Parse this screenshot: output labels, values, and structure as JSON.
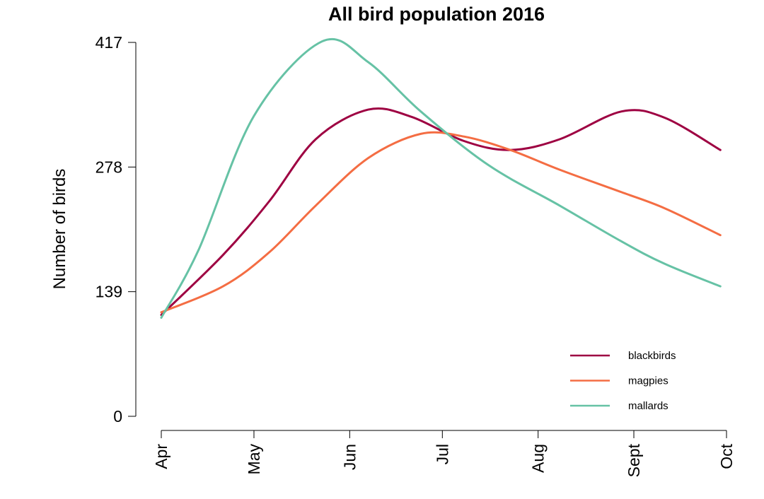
{
  "chart_data": {
    "type": "line",
    "title": "All bird population 2016",
    "ylabel": "Number of birds",
    "xlabel": "",
    "ylim": [
      0,
      417
    ],
    "yticks": [
      0,
      139,
      278,
      417
    ],
    "xlim": [
      "2016-04-01",
      "2016-10-01"
    ],
    "xticks": [
      {
        "label": "Apr",
        "date": "2016-04-01"
      },
      {
        "label": "May",
        "date": "2016-05-01"
      },
      {
        "label": "Jun",
        "date": "2016-06-01"
      },
      {
        "label": "Jul",
        "date": "2016-07-01"
      },
      {
        "label": "Aug",
        "date": "2016-08-01"
      },
      {
        "label": "Sept",
        "date": "2016-09-01"
      },
      {
        "label": "Oct",
        "date": "2016-10-01"
      }
    ],
    "legend_position": "bottom-right",
    "grid": false,
    "series": [
      {
        "name": "blackbirds",
        "color": "#9E0142",
        "points": [
          {
            "x": "2016-04-01",
            "y": 113
          },
          {
            "x": "2016-04-21",
            "y": 180
          },
          {
            "x": "2016-05-06",
            "y": 240
          },
          {
            "x": "2016-05-21",
            "y": 309
          },
          {
            "x": "2016-06-07",
            "y": 342
          },
          {
            "x": "2016-06-21",
            "y": 334
          },
          {
            "x": "2016-07-08",
            "y": 307
          },
          {
            "x": "2016-07-23",
            "y": 297
          },
          {
            "x": "2016-08-08",
            "y": 309
          },
          {
            "x": "2016-08-28",
            "y": 340
          },
          {
            "x": "2016-09-11",
            "y": 333
          },
          {
            "x": "2016-09-29",
            "y": 297
          }
        ]
      },
      {
        "name": "magpies",
        "color": "#F46D43",
        "points": [
          {
            "x": "2016-04-01",
            "y": 116
          },
          {
            "x": "2016-04-21",
            "y": 145
          },
          {
            "x": "2016-05-06",
            "y": 183
          },
          {
            "x": "2016-05-21",
            "y": 235
          },
          {
            "x": "2016-06-07",
            "y": 288
          },
          {
            "x": "2016-06-24",
            "y": 315
          },
          {
            "x": "2016-07-08",
            "y": 312
          },
          {
            "x": "2016-07-23",
            "y": 297
          },
          {
            "x": "2016-08-08",
            "y": 275
          },
          {
            "x": "2016-08-28",
            "y": 250
          },
          {
            "x": "2016-09-11",
            "y": 232
          },
          {
            "x": "2016-09-29",
            "y": 202
          }
        ]
      },
      {
        "name": "mallards",
        "color": "#66C2A5",
        "points": [
          {
            "x": "2016-04-01",
            "y": 110
          },
          {
            "x": "2016-04-13",
            "y": 185
          },
          {
            "x": "2016-05-01",
            "y": 335
          },
          {
            "x": "2016-05-23",
            "y": 418
          },
          {
            "x": "2016-06-07",
            "y": 395
          },
          {
            "x": "2016-06-24",
            "y": 340
          },
          {
            "x": "2016-07-16",
            "y": 280
          },
          {
            "x": "2016-08-08",
            "y": 235
          },
          {
            "x": "2016-08-28",
            "y": 195
          },
          {
            "x": "2016-09-11",
            "y": 170
          },
          {
            "x": "2016-09-29",
            "y": 145
          }
        ]
      }
    ]
  }
}
